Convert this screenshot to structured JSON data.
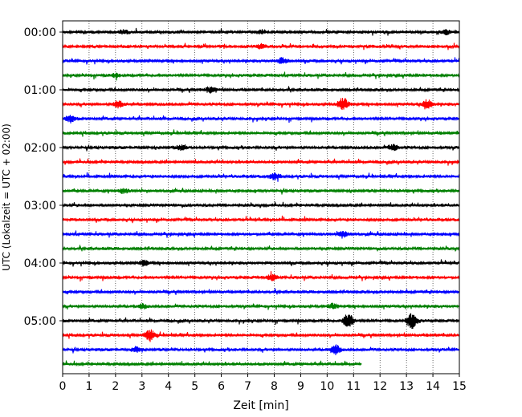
{
  "chart_data": {
    "type": "line",
    "xlabel": "Zeit  [min]",
    "ylabel": "UTC (Lokalzeit = UTC + 02:00)",
    "xlim": [
      0,
      15
    ],
    "x_ticks": [
      "0",
      "1",
      "2",
      "3",
      "4",
      "5",
      "6",
      "7",
      "8",
      "9",
      "10",
      "11",
      "12",
      "13",
      "14",
      "15"
    ],
    "y_tick_labels": [
      "00:00",
      "01:00",
      "02:00",
      "03:00",
      "04:00",
      "05:00"
    ],
    "grid": "vertical dotted lines at each minute",
    "trace_count": 24,
    "trace_colors": [
      "#000000",
      "#ff0000",
      "#0000ff",
      "#008000"
    ],
    "last_trace_end_minute": 11.3,
    "events": [
      {
        "trace": 0,
        "minute": 2.3,
        "amplitude": 2.0
      },
      {
        "trace": 0,
        "minute": 7.5,
        "amplitude": 2.0
      },
      {
        "trace": 0,
        "minute": 14.5,
        "amplitude": 2.5
      },
      {
        "trace": 1,
        "minute": 7.5,
        "amplitude": 2.5
      },
      {
        "trace": 2,
        "minute": 8.3,
        "amplitude": 3.0
      },
      {
        "trace": 3,
        "minute": 2.0,
        "amplitude": 2.0
      },
      {
        "trace": 4,
        "minute": 5.6,
        "amplitude": 3.5
      },
      {
        "trace": 5,
        "minute": 2.1,
        "amplitude": 4.0
      },
      {
        "trace": 5,
        "minute": 10.6,
        "amplitude": 8.0
      },
      {
        "trace": 5,
        "minute": 13.8,
        "amplitude": 5.0
      },
      {
        "trace": 6,
        "minute": 0.3,
        "amplitude": 4.0
      },
      {
        "trace": 8,
        "minute": 4.5,
        "amplitude": 3.0
      },
      {
        "trace": 8,
        "minute": 12.5,
        "amplitude": 3.5
      },
      {
        "trace": 10,
        "minute": 8.0,
        "amplitude": 4.0
      },
      {
        "trace": 11,
        "minute": 2.3,
        "amplitude": 2.5
      },
      {
        "trace": 14,
        "minute": 10.6,
        "amplitude": 3.0
      },
      {
        "trace": 16,
        "minute": 3.1,
        "amplitude": 3.0
      },
      {
        "trace": 17,
        "minute": 7.9,
        "amplitude": 3.5
      },
      {
        "trace": 19,
        "minute": 3.0,
        "amplitude": 2.5
      },
      {
        "trace": 19,
        "minute": 10.2,
        "amplitude": 3.0
      },
      {
        "trace": 20,
        "minute": 10.8,
        "amplitude": 8.0
      },
      {
        "trace": 20,
        "minute": 13.2,
        "amplitude": 9.0
      },
      {
        "trace": 21,
        "minute": 3.3,
        "amplitude": 7.0
      },
      {
        "trace": 22,
        "minute": 10.3,
        "amplitude": 6.0
      },
      {
        "trace": 22,
        "minute": 2.8,
        "amplitude": 3.0
      }
    ]
  }
}
